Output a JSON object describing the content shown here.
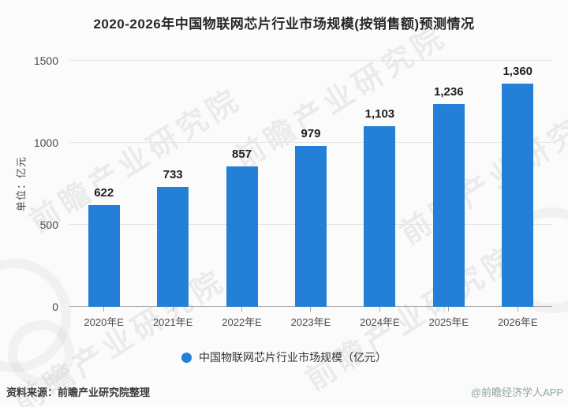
{
  "title": "2020-2026年中国物联网芯片行业市场规模(按销售额)预测情况",
  "y_axis": {
    "unit_label": "单位：亿元",
    "tick_labels": [
      "0",
      "500",
      "1000",
      "1500"
    ]
  },
  "legend": {
    "label": "中国物联网芯片行业市场规模（亿元）",
    "marker_color": "#2380d6"
  },
  "footer": {
    "source": "资料来源：前瞻产业研究院整理",
    "credit": "@前瞻经济学人APP"
  },
  "watermark": {
    "text": "前瞻产业研究院"
  },
  "colors": {
    "bar": "#2380d6",
    "gridline": "#e4e4e4",
    "baseline": "#a8a8a8"
  },
  "chart_data": {
    "type": "bar",
    "title": "2020-2026年中国物联网芯片行业市场规模(按销售额)预测情况",
    "categories": [
      "2020年E",
      "2021年E",
      "2022年E",
      "2023年E",
      "2024年E",
      "2025年E",
      "2026年E"
    ],
    "values": [
      622,
      733,
      857,
      979,
      1103,
      1236,
      1360
    ],
    "value_labels": [
      "622",
      "733",
      "857",
      "979",
      "1,103",
      "1,236",
      "1,360"
    ],
    "xlabel": "",
    "ylabel": "单位：亿元",
    "ylim": [
      0,
      1500
    ],
    "yticks": [
      0,
      500,
      1000,
      1500
    ],
    "bar_color": "#2380d6",
    "grid": true,
    "legend_position": "bottom"
  }
}
